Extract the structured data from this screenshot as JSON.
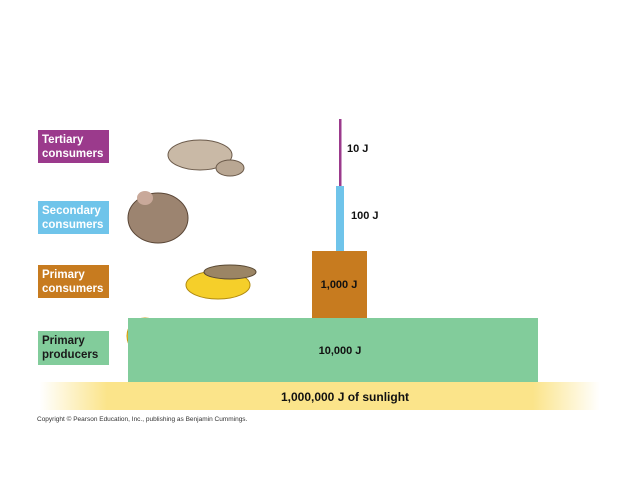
{
  "levels": [
    {
      "label": [
        "Tertiary",
        "consumers"
      ],
      "energy": "10 J"
    },
    {
      "label": [
        "Secondary",
        "consumers"
      ],
      "energy": "100 J"
    },
    {
      "label": [
        "Primary",
        "consumers"
      ],
      "energy": "1,000 J"
    },
    {
      "label": [
        "Primary",
        "producers"
      ],
      "energy": "10,000 J"
    }
  ],
  "sunlight": "1,000,000 J of sunlight",
  "copyright": "Copyright © Pearson Education, Inc., publishing as Benjamin Cummings."
}
